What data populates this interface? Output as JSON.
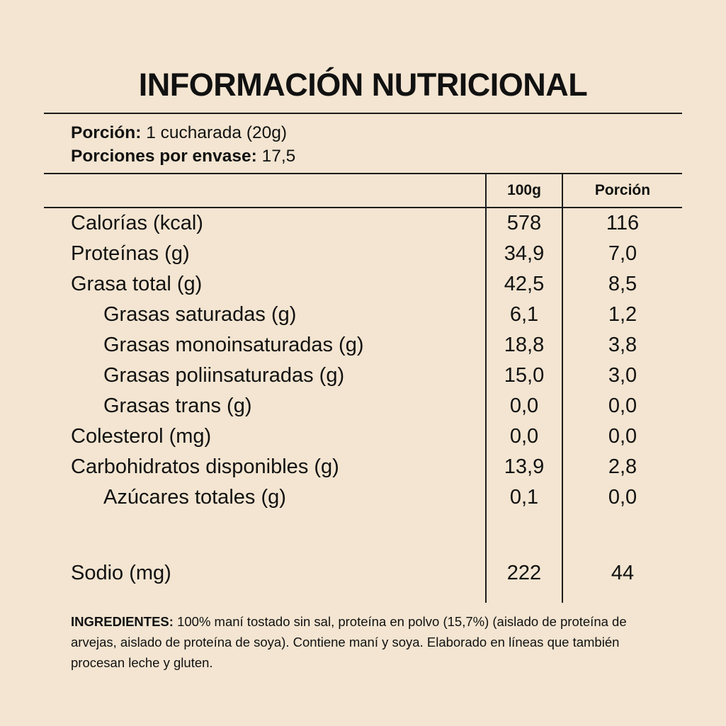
{
  "colors": {
    "background": "#f3e5d1",
    "text": "#111111",
    "rule": "#1c1c1c"
  },
  "title": "INFORMACIÓN NUTRICIONAL",
  "serving": {
    "portion_label": "Porción:",
    "portion_value": "1 cucharada (20g)",
    "servings_label": "Porciones por envase:",
    "servings_value": "17,5"
  },
  "table": {
    "col_100g": "100g",
    "col_portion": "Porción",
    "rows": [
      {
        "name": "Calorías (kcal)",
        "per100g": "578",
        "portion": "116"
      },
      {
        "name": "Proteínas (g)",
        "per100g": "34,9",
        "portion": "7,0"
      },
      {
        "name": "Grasa total (g)",
        "per100g": "42,5",
        "portion": "8,5"
      },
      {
        "name": "Grasas saturadas (g)",
        "per100g": "6,1",
        "portion": "1,2"
      },
      {
        "name": "Grasas monoinsaturadas (g)",
        "per100g": "18,8",
        "portion": "3,8"
      },
      {
        "name": "Grasas poliinsaturadas (g)",
        "per100g": "15,0",
        "portion": "3,0"
      },
      {
        "name": "Grasas trans (g)",
        "per100g": "0,0",
        "portion": "0,0"
      },
      {
        "name": "Colesterol (mg)",
        "per100g": "0,0",
        "portion": "0,0"
      },
      {
        "name": "Carbohidratos disponibles (g)",
        "per100g": "13,9",
        "portion": "2,8"
      },
      {
        "name": "Azúcares totales (g)",
        "per100g": "0,1",
        "portion": "0,0"
      },
      {
        "name": "Sodio (mg)",
        "per100g": "222",
        "portion": "44"
      }
    ]
  },
  "ingredients": {
    "label": "INGREDIENTES:",
    "text": "100% maní tostado sin sal, proteína en polvo (15,7%) (aislado de proteína de arvejas, aislado de proteína de soya). Contiene maní y soya. Elaborado en líneas que también procesan leche y gluten."
  }
}
